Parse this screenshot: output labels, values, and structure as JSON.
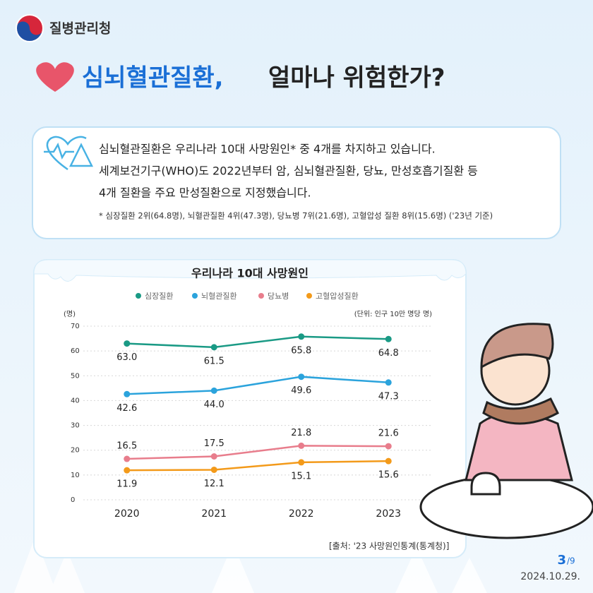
{
  "header": {
    "agency": "질병관리청",
    "title_highlight": "심뇌혈관질환,",
    "title_rest": "얼마나 위험한가?"
  },
  "info": {
    "lines": [
      "심뇌혈관질환은 우리나라 10대 사망원인* 중 4개를 차지하고 있습니다.",
      "세계보건기구(WHO)도 2022년부터 암, 심뇌혈관질환, 당뇨, 만성호흡기질환 등",
      "4개 질환을 주요 만성질환으로 지정했습니다."
    ],
    "note": "* 심장질환 2위(64.8명), 뇌혈관질환 4위(47.3명), 당뇨병 7위(21.6명), 고혈압성 질환 8위(15.6명) ('23년 기준)"
  },
  "chart_data": {
    "type": "line",
    "title": "우리나라 10대 사망원인",
    "y_label": "(명)",
    "unit_note": "(단위: 인구 10만 명당 명)",
    "categories": [
      "2020",
      "2021",
      "2022",
      "2023"
    ],
    "series": [
      {
        "name": "심장질환",
        "color": "#1a9a85",
        "values": [
          63.0,
          61.5,
          65.8,
          64.8
        ],
        "value_labels": [
          "63.0",
          "61.5",
          "65.8",
          "64.8"
        ]
      },
      {
        "name": "뇌혈관질환",
        "color": "#2ba3dc",
        "values": [
          42.6,
          44.0,
          49.6,
          47.3
        ],
        "value_labels": [
          "42.6",
          "44.0",
          "49.6",
          "47.3"
        ]
      },
      {
        "name": "당뇨병",
        "color": "#e87d8c",
        "values": [
          16.5,
          17.5,
          21.8,
          21.6
        ]
      },
      {
        "name": "고혈압성질환",
        "color": "#f39a1a",
        "values": [
          11.9,
          12.1,
          15.1,
          15.6
        ]
      }
    ],
    "ylim": [
      0,
      70
    ],
    "yticks": [
      0,
      10,
      20,
      30,
      40,
      50,
      60,
      70
    ],
    "grid": true
  },
  "source": "[출처: '23 사망원인통계(통계청)]",
  "page": {
    "current": "3",
    "total": "/9"
  },
  "date": "2024.10.29."
}
